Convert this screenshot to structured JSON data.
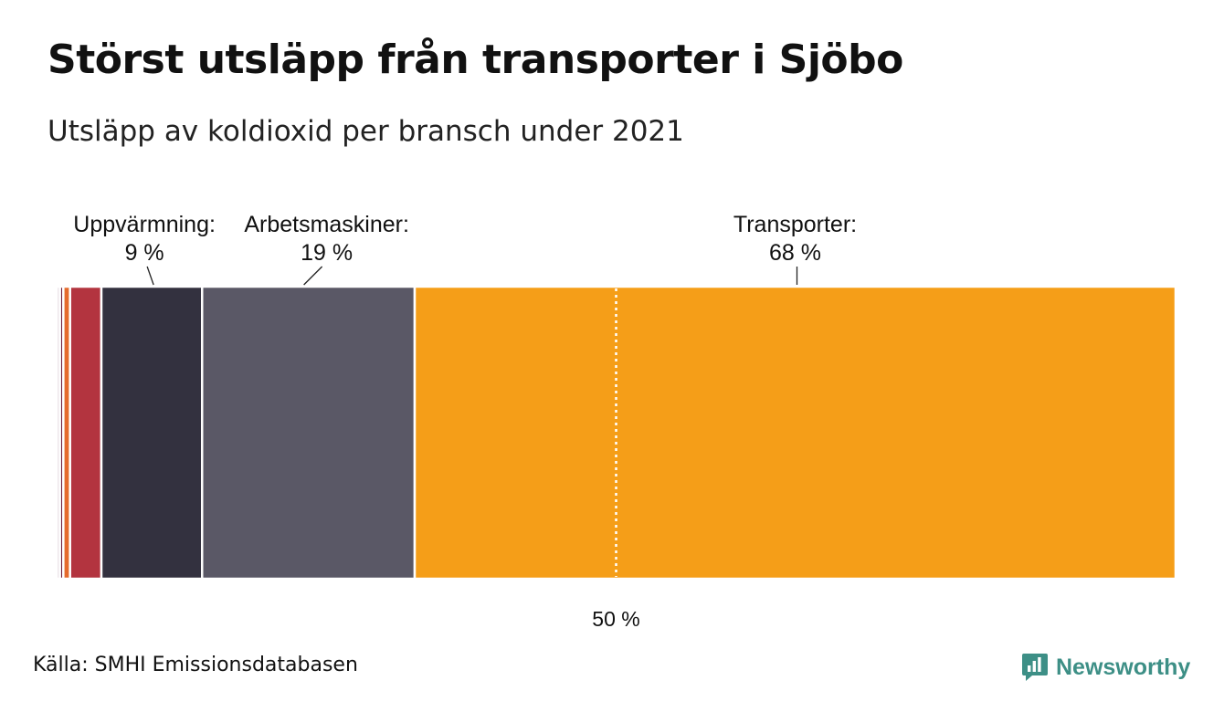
{
  "chart_data": {
    "type": "bar",
    "orientation": "horizontal-stacked-100",
    "title": "Störst utsläpp från transporter i Sjöbo",
    "subtitle": "Utsläpp av koldioxid per bransch under 2021",
    "source": "Källa: SMHI Emissionsdatabasen",
    "xlim": [
      0,
      100
    ],
    "reference_line": {
      "value": 50,
      "label": "50 %"
    },
    "segments": [
      {
        "name": "unlabeled-1",
        "value": 0.3,
        "color": "#e9dfe6",
        "label": "",
        "value_label": ""
      },
      {
        "name": "unlabeled-2",
        "value": 0.3,
        "color": "#6e1f3f",
        "label": "",
        "value_label": ""
      },
      {
        "name": "unlabeled-3",
        "value": 0.6,
        "color": "#e56b2d",
        "label": "",
        "value_label": ""
      },
      {
        "name": "unlabeled-4",
        "value": 2.8,
        "color": "#b3343f",
        "label": "",
        "value_label": ""
      },
      {
        "name": "uppvarmning",
        "value": 9,
        "color": "#33313f",
        "label": "Uppvärmning:",
        "value_label": "9 %"
      },
      {
        "name": "arbetsmaskiner",
        "value": 19,
        "color": "#5a5866",
        "label": "Arbetsmaskiner:",
        "value_label": "19 %"
      },
      {
        "name": "transporter",
        "value": 68,
        "color": "#f59e18",
        "label": "Transporter:",
        "value_label": "68 %"
      }
    ]
  },
  "footer": {
    "source": "Källa: SMHI Emissionsdatabasen",
    "brand": "Newsworthy",
    "brand_color": "#3d8f86"
  }
}
